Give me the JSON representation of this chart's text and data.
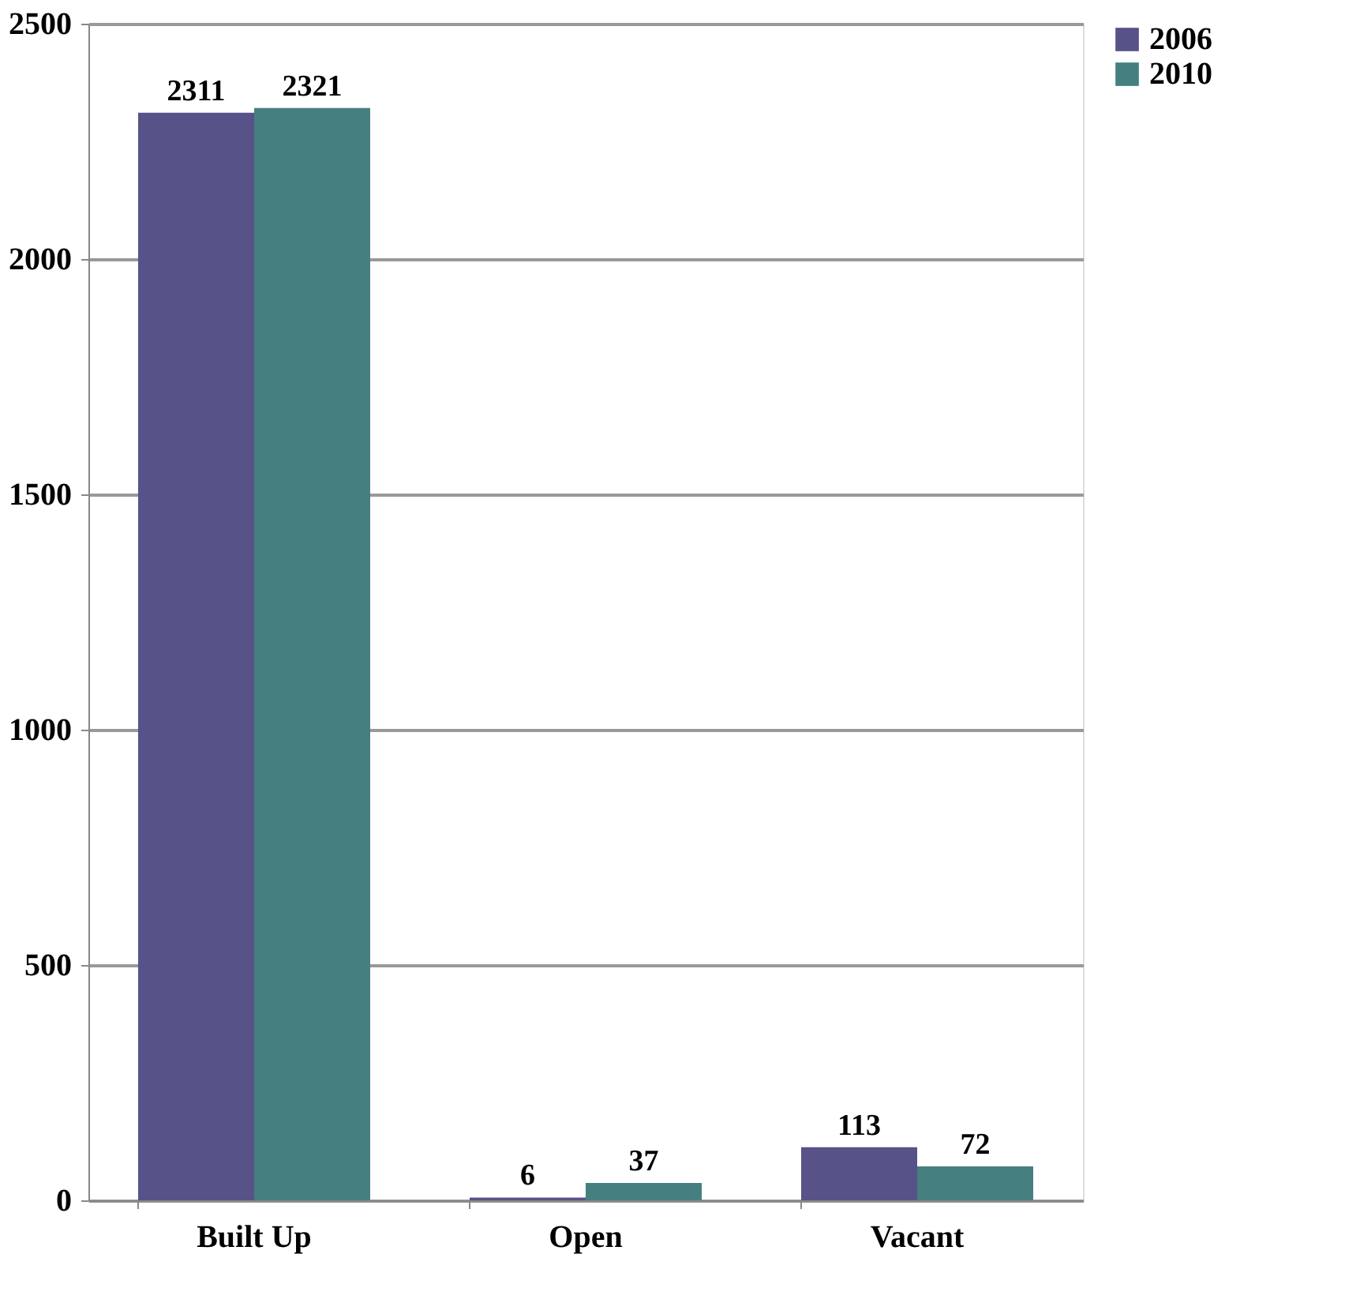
{
  "chart_data": {
    "type": "bar",
    "categories": [
      "Built Up",
      "Open",
      "Vacant"
    ],
    "series": [
      {
        "name": "2006",
        "color": "#575287",
        "values": [
          2311,
          6,
          113
        ]
      },
      {
        "name": "2010",
        "color": "#457f80",
        "values": [
          2321,
          37,
          72
        ]
      }
    ],
    "ylim": [
      0,
      2500
    ],
    "yticks": [
      0,
      500,
      1000,
      1500,
      2000,
      2500
    ],
    "grid": "y",
    "legend": "right",
    "data_labels": true
  }
}
